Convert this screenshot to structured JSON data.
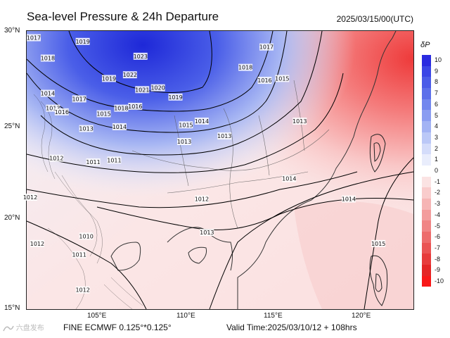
{
  "header": {
    "title": "Sea-level Pressure & 24h Departure",
    "datetime": "2025/03/15/00(UTC)"
  },
  "axes": {
    "latitudes": [
      "30°N",
      "25°N",
      "20°N",
      "15°N"
    ],
    "longitudes": [
      "105°E",
      "110°E",
      "115°E",
      "120°E"
    ]
  },
  "legend": {
    "title": "δP",
    "values": [
      "10",
      "9",
      "8",
      "7",
      "6",
      "5",
      "4",
      "3",
      "2",
      "1",
      "0",
      "-1",
      "-2",
      "-3",
      "-4",
      "-5",
      "-6",
      "-7",
      "-8",
      "-9",
      "-10"
    ],
    "colors": [
      "#2a2be0",
      "#3b46e6",
      "#4b5ce8",
      "#5d70ea",
      "#7387ee",
      "#8b9df1",
      "#a3b3f4",
      "#bbc8f7",
      "#d4dcfa",
      "#e9edfc",
      "#ffffff",
      "#fbe3e3",
      "#f9cccc",
      "#f6b5b5",
      "#f39d9d",
      "#f08585",
      "#ed6c6c",
      "#ea5454",
      "#e73b3b",
      "#e42525",
      "#f81818"
    ]
  },
  "isobars": [
    {
      "label": "1017",
      "lon": 101.2,
      "lat": 29.6
    },
    {
      "label": "1019",
      "lon": 104.0,
      "lat": 29.4
    },
    {
      "label": "1018",
      "lon": 102.0,
      "lat": 28.5
    },
    {
      "label": "1023",
      "lon": 107.3,
      "lat": 28.6
    },
    {
      "label": "1022",
      "lon": 106.7,
      "lat": 27.6
    },
    {
      "label": "1019",
      "lon": 105.5,
      "lat": 27.4
    },
    {
      "label": "1021",
      "lon": 107.4,
      "lat": 26.8
    },
    {
      "label": "1020",
      "lon": 108.3,
      "lat": 26.9
    },
    {
      "label": "1019",
      "lon": 109.3,
      "lat": 26.4
    },
    {
      "label": "1017",
      "lon": 103.8,
      "lat": 26.3
    },
    {
      "label": "1018",
      "lon": 106.2,
      "lat": 25.8
    },
    {
      "label": "1016",
      "lon": 107.0,
      "lat": 25.9
    },
    {
      "label": "1015",
      "lon": 105.2,
      "lat": 25.5
    },
    {
      "label": "1014",
      "lon": 102.0,
      "lat": 26.6
    },
    {
      "label": "1013",
      "lon": 102.3,
      "lat": 25.8
    },
    {
      "label": "1016",
      "lon": 102.8,
      "lat": 25.6
    },
    {
      "label": "1014",
      "lon": 106.1,
      "lat": 24.8
    },
    {
      "label": "1013",
      "lon": 104.2,
      "lat": 24.7
    },
    {
      "label": "1015",
      "lon": 109.9,
      "lat": 24.9
    },
    {
      "label": "1014",
      "lon": 110.8,
      "lat": 25.1
    },
    {
      "label": "1013",
      "lon": 109.8,
      "lat": 24.0
    },
    {
      "label": "1013",
      "lon": 112.1,
      "lat": 24.3
    },
    {
      "label": "1018",
      "lon": 113.3,
      "lat": 28.0
    },
    {
      "label": "1017",
      "lon": 114.5,
      "lat": 29.1
    },
    {
      "label": "1016",
      "lon": 114.4,
      "lat": 27.3
    },
    {
      "label": "1015",
      "lon": 115.4,
      "lat": 27.4
    },
    {
      "label": "1013",
      "lon": 116.4,
      "lat": 25.1
    },
    {
      "label": "1012",
      "lon": 102.5,
      "lat": 23.1
    },
    {
      "label": "1011",
      "lon": 104.6,
      "lat": 22.9
    },
    {
      "label": "1011",
      "lon": 105.8,
      "lat": 23.0
    },
    {
      "label": "1012",
      "lon": 101.0,
      "lat": 21.0
    },
    {
      "label": "1014",
      "lon": 115.8,
      "lat": 22.0
    },
    {
      "label": "1014",
      "lon": 119.2,
      "lat": 20.9
    },
    {
      "label": "1012",
      "lon": 110.8,
      "lat": 20.9
    },
    {
      "label": "1013",
      "lon": 111.1,
      "lat": 19.1
    },
    {
      "label": "1010",
      "lon": 104.2,
      "lat": 18.9
    },
    {
      "label": "1011",
      "lon": 103.8,
      "lat": 17.9
    },
    {
      "label": "1012",
      "lon": 101.4,
      "lat": 18.5
    },
    {
      "label": "1012",
      "lon": 104.0,
      "lat": 16.0
    },
    {
      "label": "1015",
      "lon": 120.9,
      "lat": 18.5
    }
  ],
  "footer": {
    "brand": "六盘发布",
    "model": "FINE ECMWF 0.125°*0.125°",
    "valid": "Valid Time:2025/03/10/12 + 108hrs"
  }
}
